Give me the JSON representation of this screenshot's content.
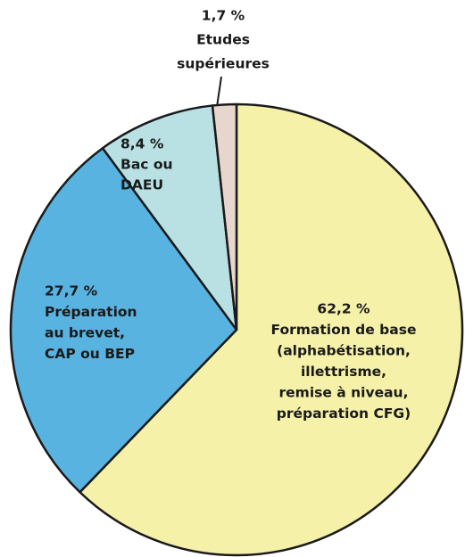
{
  "chart_data": {
    "type": "pie",
    "categories": [
      [
        "Formation de base",
        "(alphabétisation,",
        "illettrisme,",
        "remise à niveau,",
        "préparation CFG)"
      ],
      [
        "Préparation",
        "au brevet,",
        "CAP ou BEP"
      ],
      [
        "Bac ou",
        "DAEU"
      ],
      [
        "Etudes",
        "supérieures"
      ]
    ],
    "values": [
      62.2,
      27.7,
      8.4,
      1.7
    ],
    "value_labels": [
      "62,2 %",
      "27,7 %",
      "8,4 %",
      "1,7 %"
    ],
    "colors": [
      "#f6f1a9",
      "#58b3e1",
      "#b9e1e4",
      "#e6d6cd"
    ]
  }
}
